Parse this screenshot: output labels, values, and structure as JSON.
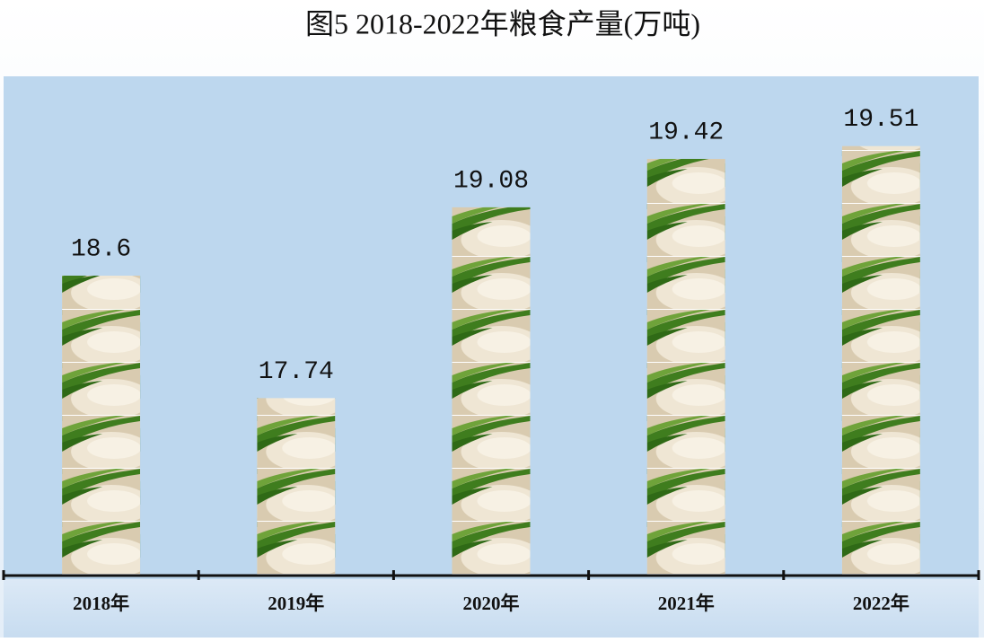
{
  "chart_data": {
    "type": "bar",
    "title": "图5  2018-2022年粮食产量(万吨)",
    "categories": [
      "2018年",
      "2019年",
      "2020年",
      "2021年",
      "2022年"
    ],
    "values": [
      18.6,
      17.74,
      19.08,
      19.42,
      19.51
    ],
    "ylim": [
      16.5,
      20
    ]
  }
}
